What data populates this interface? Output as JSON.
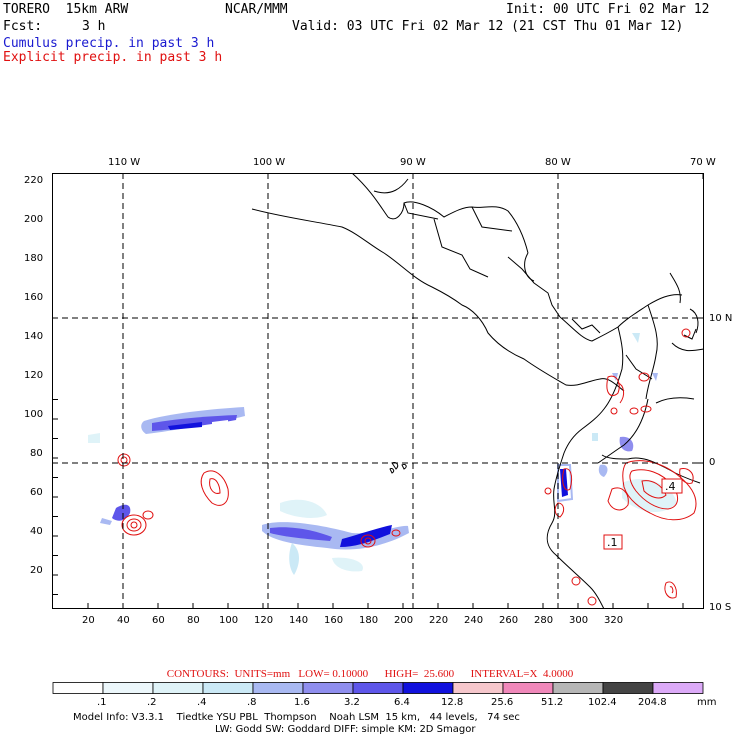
{
  "header": {
    "model": "TORERO  15km ARW",
    "org": "NCAR/MMM",
    "init": "Init: 00 UTC Fri 02 Mar 12",
    "fcst_label": "Fcst:",
    "fcst_value": "3 h",
    "valid": "Valid: 03 UTC Fri 02 Mar 12 (21 CST Thu 01 Mar 12)",
    "field1": "Cumulus precip. in past 3 h",
    "field2": "Explicit precip. in past 3 h"
  },
  "map": {
    "lon_labels": [
      "110 W",
      "100 W",
      "90 W",
      "80 W",
      "70 W"
    ],
    "lat_labels": [
      "10 N",
      "0",
      "10 S"
    ],
    "y_ticks": [
      "220",
      "200",
      "180",
      "160",
      "140",
      "120",
      "100",
      "80",
      "60",
      "40",
      "20"
    ],
    "x_ticks": [
      "20",
      "40",
      "60",
      "80",
      "100",
      "120",
      "140",
      "160",
      "180",
      "200",
      "220",
      "240",
      "260",
      "280",
      "300",
      "320"
    ],
    "contour_labels": [
      ".4",
      ".1"
    ]
  },
  "contour_info": {
    "units": "CONTOURS:  UNITS=mm",
    "low": "LOW= 0.10000",
    "high": "HIGH=  25.600",
    "interval": "INTERVAL=X  4.0000"
  },
  "colorbar": {
    "labels": [
      ".1",
      ".2",
      ".4",
      ".8",
      "1.6",
      "3.2",
      "6.4",
      "12.8",
      "25.6",
      "51.2",
      "102.4",
      "204.8"
    ],
    "unit": "mm",
    "colors": [
      "#ffffff",
      "#ecf7fb",
      "#dff3f8",
      "#cbe9f6",
      "#a9b9f2",
      "#8f8eee",
      "#5e56ea",
      "#1111dd",
      "#f6c7cc",
      "#f088ba",
      "#b6b6b6",
      "#444444",
      "#dcaaf8"
    ]
  },
  "footer": {
    "line1": "Model Info: V3.3.1    Tiedtke YSU PBL  Thompson    Noah LSM  15 km,   44 levels,   74 sec",
    "line2": "LW: Godd SW: Goddard DIFF: simple KM: 2D Smagor"
  }
}
